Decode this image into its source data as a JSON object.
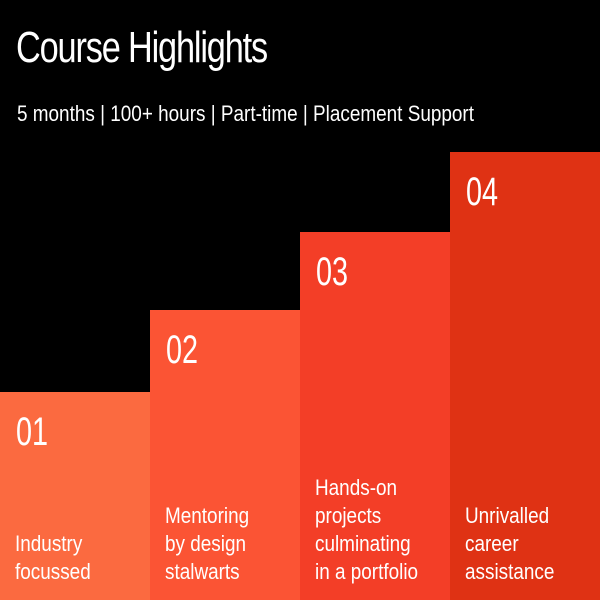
{
  "header": {
    "title": "Course Highlights",
    "subtitle": "5 months | 100+ hours | Part-time | Placement Support"
  },
  "steps": [
    {
      "number": "01",
      "description": "Industry\nfocussed"
    },
    {
      "number": "02",
      "description": "Mentoring\nby design\nstalwarts"
    },
    {
      "number": "03",
      "description": "Hands-on\nprojects\nculminating\nin a portfolio"
    },
    {
      "number": "04",
      "description": "Unrivalled\ncareer\nassistance"
    }
  ],
  "colors": {
    "background": "#000000",
    "text": "#ffffff",
    "step_1": "#fb6a40",
    "step_2": "#fb5434",
    "step_3": "#f33e27",
    "step_4": "#df3214"
  }
}
